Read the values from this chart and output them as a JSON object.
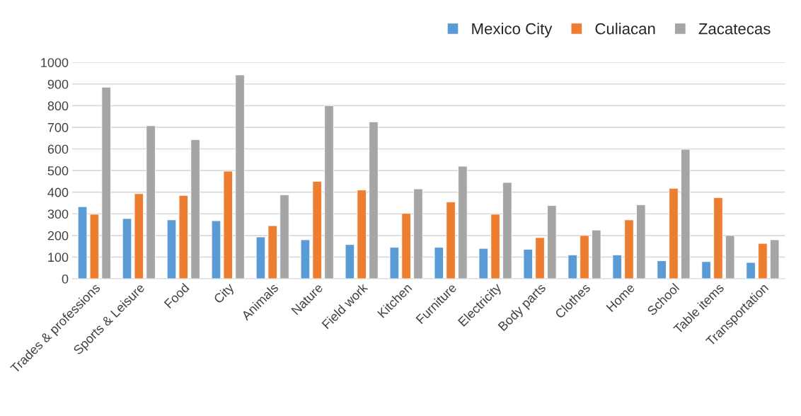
{
  "chart_data": {
    "type": "bar",
    "categories": [
      "Trades & professions",
      "Sports & Leisure",
      "Food",
      "City",
      "Animals",
      "Nature",
      "Field work",
      "Kitchen",
      "Furniture",
      "Electricity",
      "Body parts",
      "Clothes",
      "Home",
      "School",
      "Table items",
      "Transportation"
    ],
    "series": [
      {
        "name": "Mexico City",
        "color": "#5b9bd5",
        "values": [
          333,
          278,
          272,
          268,
          193,
          180,
          158,
          145,
          145,
          140,
          136,
          110,
          110,
          83,
          79,
          75
        ]
      },
      {
        "name": "Culiacan",
        "color": "#ed7d31",
        "values": [
          298,
          393,
          385,
          497,
          245,
          450,
          410,
          302,
          355,
          298,
          190,
          200,
          272,
          418,
          375,
          163
        ]
      },
      {
        "name": "Zacatecas",
        "color": "#a5a5a5",
        "values": [
          885,
          707,
          643,
          942,
          388,
          800,
          725,
          415,
          520,
          445,
          338,
          225,
          342,
          598,
          200,
          180
        ]
      }
    ],
    "ylim": [
      0,
      1000
    ],
    "yticks": [
      0,
      100,
      200,
      300,
      400,
      500,
      600,
      700,
      800,
      900,
      1000
    ],
    "grid": "y",
    "legend": "top right"
  }
}
